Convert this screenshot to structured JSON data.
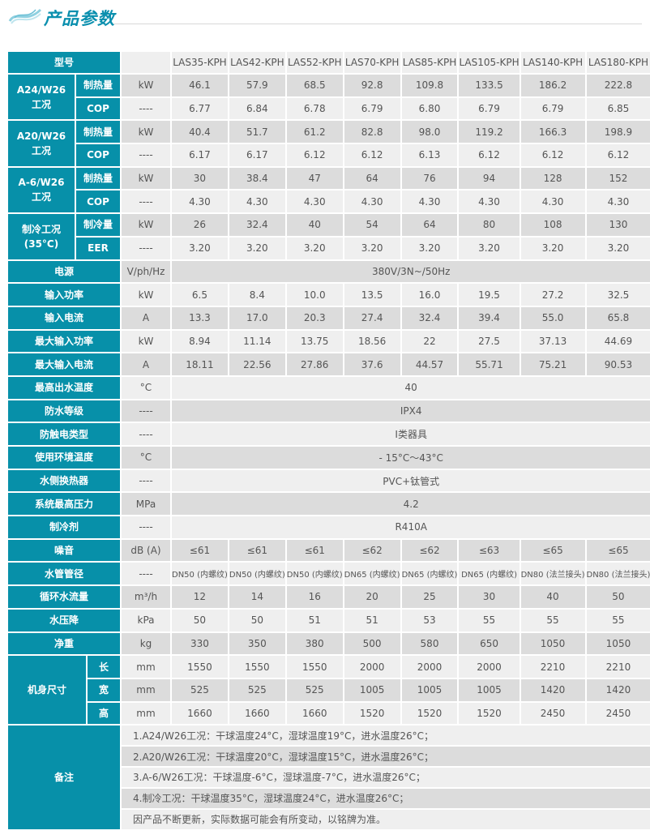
{
  "header": {
    "title": "产品参数",
    "logo": "wave-logo"
  },
  "colors": {
    "accent": "#0790a9",
    "row_light": "#efefef",
    "row_dark": "#dcdcdc"
  },
  "table": {
    "model_label": "型号",
    "models": [
      "LAS35-KPH",
      "LAS42-KPH",
      "LAS52-KPH",
      "LAS70-KPH",
      "LAS85-KPH",
      "LAS105-KPH",
      "LAS140-KPH",
      "LAS180-KPH"
    ],
    "groups": [
      {
        "label": "A24/W26\n工况",
        "rows": [
          {
            "sub": "制热量",
            "unit": "kW",
            "values": [
              "46.1",
              "57.9",
              "68.5",
              "92.8",
              "109.8",
              "133.5",
              "186.2",
              "222.8"
            ]
          },
          {
            "sub": "COP",
            "unit": "----",
            "values": [
              "6.77",
              "6.84",
              "6.78",
              "6.79",
              "6.80",
              "6.79",
              "6.79",
              "6.85"
            ]
          }
        ]
      },
      {
        "label": "A20/W26\n工况",
        "rows": [
          {
            "sub": "制热量",
            "unit": "kW",
            "values": [
              "40.4",
              "51.7",
              "61.2",
              "82.8",
              "98.0",
              "119.2",
              "166.3",
              "198.9"
            ]
          },
          {
            "sub": "COP",
            "unit": "----",
            "values": [
              "6.17",
              "6.17",
              "6.12",
              "6.12",
              "6.13",
              "6.12",
              "6.12",
              "6.12"
            ]
          }
        ]
      },
      {
        "label": "A-6/W26\n工况",
        "rows": [
          {
            "sub": "制热量",
            "unit": "kW",
            "values": [
              "30",
              "38.4",
              "47",
              "64",
              "76",
              "94",
              "128",
              "152"
            ]
          },
          {
            "sub": "COP",
            "unit": "----",
            "values": [
              "4.30",
              "4.30",
              "4.30",
              "4.30",
              "4.30",
              "4.30",
              "4.30",
              "4.30"
            ]
          }
        ]
      },
      {
        "label": "制冷工况\n(35°C)",
        "rows": [
          {
            "sub": "制冷量",
            "unit": "kW",
            "values": [
              "26",
              "32.4",
              "40",
              "54",
              "64",
              "80",
              "108",
              "130"
            ]
          },
          {
            "sub": "EER",
            "unit": "----",
            "values": [
              "3.20",
              "3.20",
              "3.20",
              "3.20",
              "3.20",
              "3.20",
              "3.20",
              "3.20"
            ]
          }
        ]
      }
    ],
    "rows": [
      {
        "label": "电源",
        "unit": "V/ph/Hz",
        "span": "380V/3N~/50Hz"
      },
      {
        "label": "输入功率",
        "unit": "kW",
        "values": [
          "6.5",
          "8.4",
          "10.0",
          "13.5",
          "16.0",
          "19.5",
          "27.2",
          "32.5"
        ]
      },
      {
        "label": "输入电流",
        "unit": "A",
        "values": [
          "13.3",
          "17.0",
          "20.3",
          "27.4",
          "32.4",
          "39.4",
          "55.0",
          "65.8"
        ]
      },
      {
        "label": "最大输入功率",
        "unit": "kW",
        "values": [
          "8.94",
          "11.14",
          "13.75",
          "18.56",
          "22",
          "27.5",
          "37.13",
          "44.69"
        ]
      },
      {
        "label": "最大输入电流",
        "unit": "A",
        "values": [
          "18.11",
          "22.56",
          "27.86",
          "37.6",
          "44.57",
          "55.71",
          "75.21",
          "90.53"
        ]
      },
      {
        "label": "最高出水温度",
        "unit": "°C",
        "span": "40"
      },
      {
        "label": "防水等级",
        "unit": "----",
        "span": "IPX4"
      },
      {
        "label": "防触电类型",
        "unit": "----",
        "span": "I类器具"
      },
      {
        "label": "使用环境温度",
        "unit": "°C",
        "span": "- 15°C～43°C"
      },
      {
        "label": "水侧换热器",
        "unit": "----",
        "span": "PVC+钛管式"
      },
      {
        "label": "系统最高压力",
        "unit": "MPa",
        "span": "4.2"
      },
      {
        "label": "制冷剂",
        "unit": "----",
        "span": "R410A"
      },
      {
        "label": "噪音",
        "unit": "dB (A)",
        "values": [
          "≤61",
          "≤61",
          "≤61",
          "≤62",
          "≤62",
          "≤63",
          "≤65",
          "≤65"
        ]
      },
      {
        "label": "水管管径",
        "unit": "----",
        "small": true,
        "values": [
          "DN50 (内螺纹)",
          "DN50 (内螺纹)",
          "DN50 (内螺纹)",
          "DN65 (内螺纹)",
          "DN65 (内螺纹)",
          "DN65 (内螺纹)",
          "DN80 (法兰接头)",
          "DN80 (法兰接头)"
        ]
      },
      {
        "label": "循环水流量",
        "unit": "m³/h",
        "values": [
          "12",
          "14",
          "16",
          "20",
          "25",
          "30",
          "40",
          "50"
        ]
      },
      {
        "label": "水压降",
        "unit": "kPa",
        "values": [
          "50",
          "50",
          "51",
          "51",
          "53",
          "55",
          "55",
          "55"
        ]
      },
      {
        "label": "净重",
        "unit": "kg",
        "values": [
          "330",
          "350",
          "380",
          "500",
          "580",
          "650",
          "1050",
          "1050"
        ]
      }
    ],
    "dimensions": {
      "label": "机身尺寸",
      "rows": [
        {
          "sub": "长",
          "unit": "mm",
          "values": [
            "1550",
            "1550",
            "1550",
            "2000",
            "2000",
            "2000",
            "2210",
            "2210"
          ]
        },
        {
          "sub": "宽",
          "unit": "mm",
          "values": [
            "525",
            "525",
            "525",
            "1005",
            "1005",
            "1005",
            "1420",
            "1420"
          ]
        },
        {
          "sub": "高",
          "unit": "mm",
          "values": [
            "1660",
            "1660",
            "1660",
            "1520",
            "1520",
            "1520",
            "2450",
            "2450"
          ]
        }
      ]
    },
    "notes": {
      "label": "备注",
      "items": [
        "1.A24/W26工况：干球温度24°C，湿球温度19°C，进水温度26°C；",
        "2.A20/W26工况：干球温度20°C，湿球温度15°C，进水温度26°C；",
        "3.A-6/W26工况：干球温度-6°C，湿球温度-7°C，进水温度26°C；",
        "4.制冷工况：干球温度35°C，湿球温度24°C，进水温度26°C；",
        "因产品不断更新，实际数据可能会有所变动，以铭牌为准。"
      ]
    }
  }
}
